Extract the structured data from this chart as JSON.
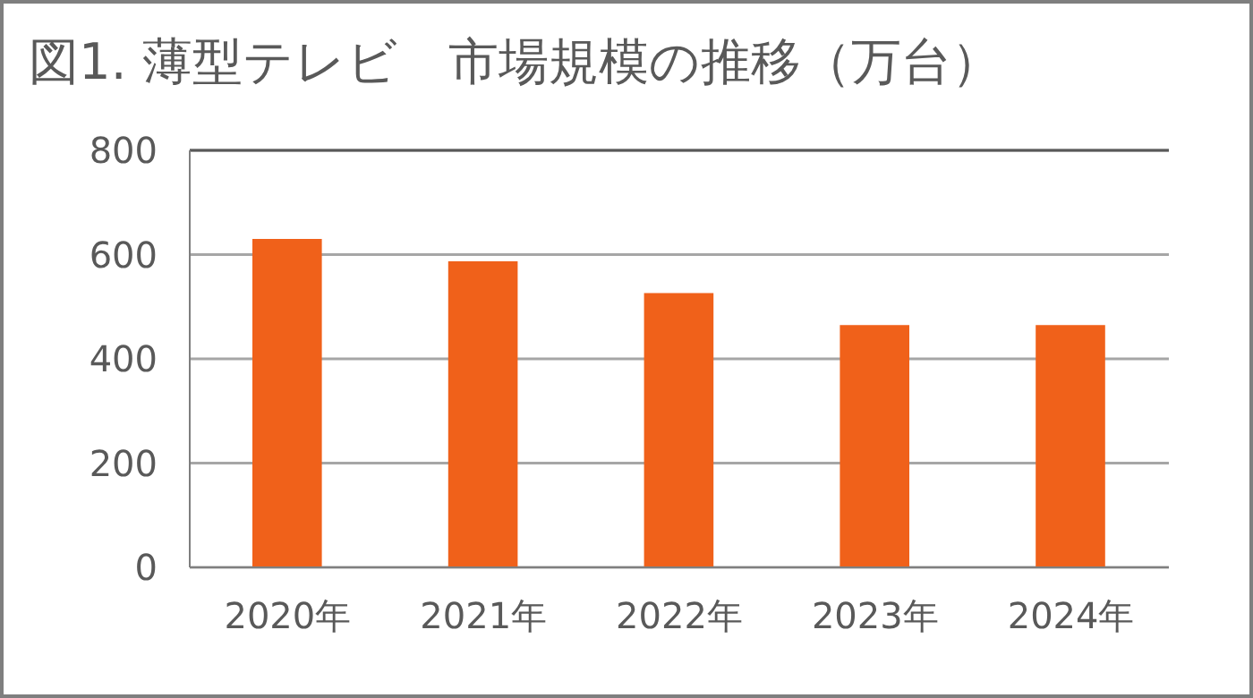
{
  "chart_data": {
    "type": "bar",
    "title": "図1. 薄型テレビ　市場規模の推移（万台）",
    "categories": [
      "2020年",
      "2021年",
      "2022年",
      "2023年",
      "2024年"
    ],
    "values": [
      630,
      587,
      526,
      465,
      465
    ],
    "color": "#f0611a",
    "ylim": [
      0,
      800
    ],
    "yticks": [
      0,
      200,
      400,
      600,
      800
    ],
    "grid": "y",
    "legend": false
  }
}
